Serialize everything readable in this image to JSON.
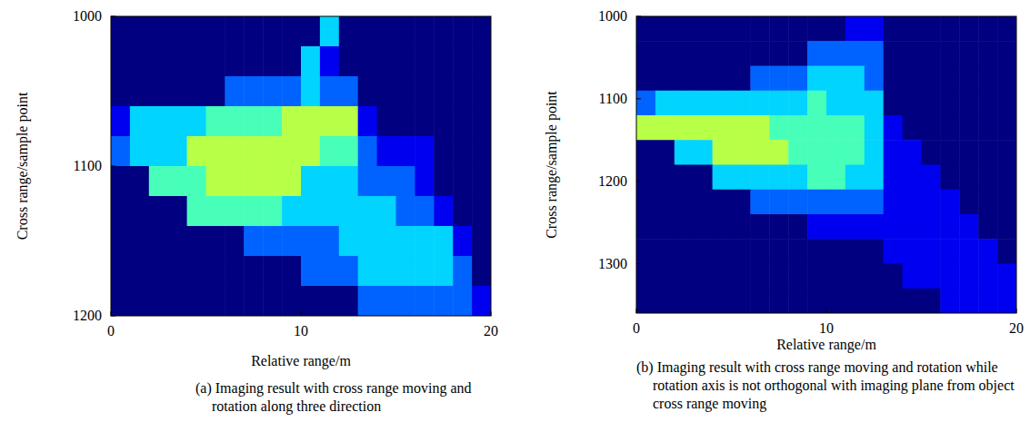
{
  "chart_data": [
    {
      "type": "heatmap",
      "caption": "(a) Imaging result with cross range moving and rotation along three direction",
      "x_label": "Relative range/m",
      "y_label": "Cross range/sample point",
      "xlim": [
        0,
        20
      ],
      "xticks": [
        0,
        10,
        20
      ],
      "ylim": [
        1200,
        1000
      ],
      "yticks": [
        1000,
        1100,
        1200
      ],
      "zlim": [
        0,
        9
      ],
      "cells": [
        [
          0,
          0,
          0,
          0,
          0,
          0,
          0,
          0,
          0,
          0,
          0,
          3,
          0,
          0,
          0,
          0,
          0,
          0,
          0,
          0
        ],
        [
          0,
          0,
          0,
          0,
          0,
          0,
          0,
          0,
          0,
          0,
          3,
          1,
          0,
          0,
          0,
          0,
          0,
          0,
          0,
          0
        ],
        [
          0,
          0,
          0,
          0,
          0,
          0,
          2,
          2,
          2,
          2,
          3,
          2,
          2,
          0,
          0,
          0,
          0,
          0,
          0,
          0
        ],
        [
          1,
          3,
          3,
          3,
          3,
          4,
          4,
          4,
          4,
          5,
          5,
          5,
          5,
          1,
          0,
          0,
          0,
          0,
          0,
          0
        ],
        [
          2,
          3,
          3,
          3,
          5,
          5,
          5,
          5,
          5,
          5,
          5,
          4,
          4,
          2,
          1,
          1,
          1,
          0,
          0,
          0
        ],
        [
          0,
          0,
          4,
          4,
          4,
          5,
          5,
          5,
          5,
          5,
          3,
          3,
          3,
          2,
          2,
          2,
          1,
          0,
          0,
          0
        ],
        [
          0,
          0,
          0,
          0,
          4,
          4,
          4,
          4,
          4,
          3,
          3,
          3,
          3,
          3,
          3,
          2,
          2,
          1,
          0,
          0
        ],
        [
          0,
          0,
          0,
          0,
          0,
          0,
          0,
          2,
          2,
          2,
          2,
          2,
          3,
          3,
          3,
          3,
          3,
          3,
          1,
          0
        ],
        [
          0,
          0,
          0,
          0,
          0,
          0,
          0,
          0,
          0,
          0,
          2,
          2,
          2,
          3,
          3,
          3,
          3,
          3,
          2,
          0
        ],
        [
          0,
          0,
          0,
          0,
          0,
          0,
          0,
          0,
          0,
          0,
          0,
          0,
          0,
          2,
          2,
          2,
          2,
          2,
          2,
          1
        ]
      ]
    },
    {
      "type": "heatmap",
      "caption": "(b) Imaging result with cross range moving and rotation while rotation axis is not orthogonal with imaging plane from object cross range moving",
      "x_label": "Relative range/m",
      "y_label": "Cross range/sample point",
      "xlim": [
        0,
        20
      ],
      "xticks": [
        0,
        10,
        20
      ],
      "ylim": [
        1360,
        1000
      ],
      "yticks": [
        1000,
        1100,
        1200,
        1300
      ],
      "zlim": [
        0,
        9
      ],
      "cells": [
        [
          0,
          0,
          0,
          0,
          0,
          0,
          0,
          0,
          0,
          0,
          0,
          1,
          1,
          0,
          0,
          0,
          0,
          0,
          0,
          0
        ],
        [
          0,
          0,
          0,
          0,
          0,
          0,
          0,
          0,
          0,
          2,
          2,
          2,
          2,
          0,
          0,
          0,
          0,
          0,
          0,
          0
        ],
        [
          0,
          0,
          0,
          0,
          0,
          0,
          2,
          2,
          2,
          3,
          3,
          3,
          2,
          0,
          0,
          0,
          0,
          0,
          0,
          0
        ],
        [
          2,
          3,
          3,
          3,
          3,
          3,
          3,
          3,
          3,
          4,
          3,
          3,
          3,
          0,
          0,
          0,
          0,
          0,
          0,
          0
        ],
        [
          5,
          5,
          5,
          5,
          5,
          5,
          5,
          4,
          4,
          4,
          4,
          4,
          3,
          1,
          0,
          0,
          0,
          0,
          0,
          0
        ],
        [
          0,
          0,
          3,
          3,
          5,
          5,
          5,
          5,
          4,
          4,
          4,
          4,
          3,
          1,
          1,
          0,
          0,
          0,
          0,
          0
        ],
        [
          0,
          0,
          0,
          0,
          3,
          3,
          3,
          3,
          3,
          4,
          4,
          3,
          3,
          1,
          1,
          1,
          0,
          0,
          0,
          0
        ],
        [
          0,
          0,
          0,
          0,
          0,
          0,
          2,
          2,
          2,
          2,
          2,
          2,
          2,
          1,
          1,
          1,
          1,
          0,
          0,
          0
        ],
        [
          0,
          0,
          0,
          0,
          0,
          0,
          0,
          0,
          0,
          1,
          1,
          1,
          1,
          1,
          1,
          1,
          1,
          1,
          0,
          0
        ],
        [
          0,
          0,
          0,
          0,
          0,
          0,
          0,
          0,
          0,
          0,
          0,
          0,
          0,
          1,
          1,
          1,
          1,
          1,
          1,
          0
        ],
        [
          0,
          0,
          0,
          0,
          0,
          0,
          0,
          0,
          0,
          0,
          0,
          0,
          0,
          0,
          1,
          1,
          1,
          1,
          1,
          1
        ],
        [
          0,
          0,
          0,
          0,
          0,
          0,
          0,
          0,
          0,
          0,
          0,
          0,
          0,
          0,
          0,
          0,
          1,
          1,
          1,
          1
        ]
      ]
    }
  ]
}
